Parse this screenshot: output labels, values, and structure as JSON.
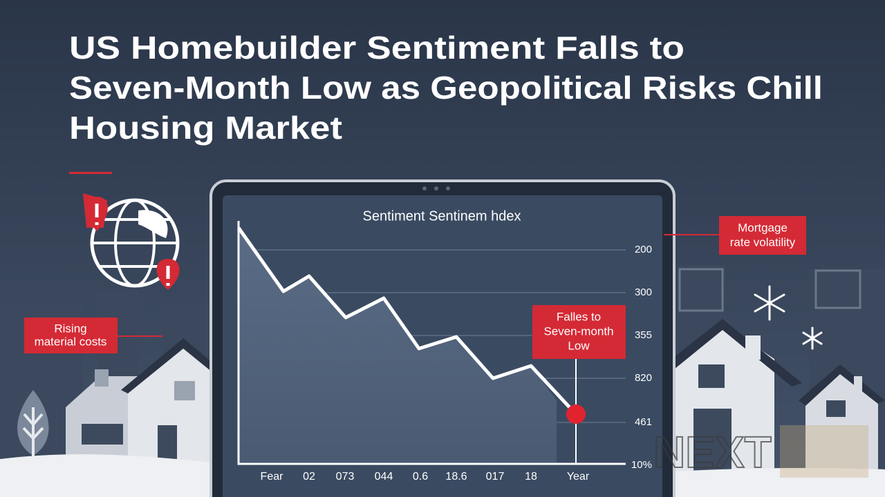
{
  "headline": {
    "lines": [
      "US Homebuilder Sentiment Falls to",
      "Seven-Month Low as Geopolitical Risks Chill",
      "Housing Market"
    ]
  },
  "chart": {
    "title": "Sentiment Sentinem hdex",
    "y_labels": [
      "200",
      "300",
      "355",
      "820",
      "461",
      "10%"
    ],
    "x_labels": [
      "Fear",
      "02",
      "073",
      "044",
      "0.6",
      "18.6",
      "017",
      "18",
      "Year"
    ]
  },
  "callouts": {
    "mortgage": [
      "Mortgage",
      "rate volatility"
    ],
    "materials": [
      "Rising",
      "material costs"
    ],
    "low": [
      "Falles to",
      "Seven-month",
      "Low"
    ]
  },
  "logo": "NEXT"
}
